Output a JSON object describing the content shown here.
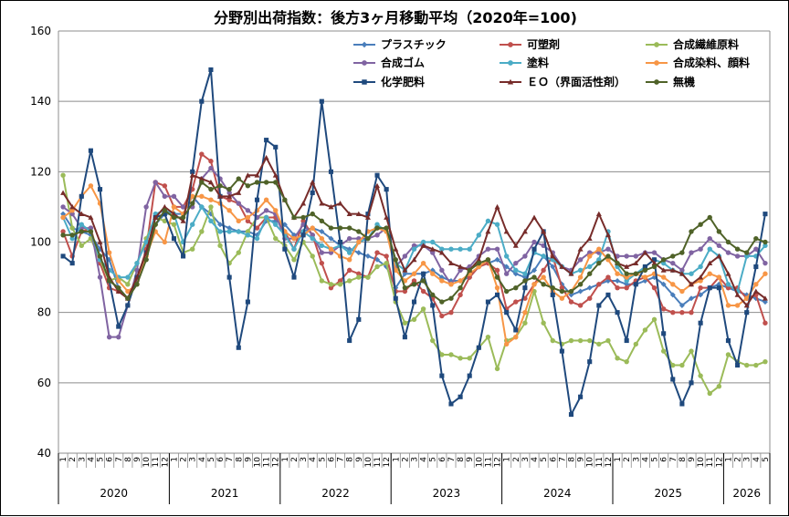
{
  "chart_data": {
    "type": "line",
    "title": "分野別出荷指数：後方3ヶ月移動平均（2020年=100)",
    "ylim": [
      40,
      160
    ],
    "yticks": [
      40,
      60,
      80,
      100,
      120,
      140,
      160
    ],
    "grid": "horizontal",
    "legend_position": "top-right",
    "years": [
      {
        "label": "2020",
        "months": 12
      },
      {
        "label": "2021",
        "months": 12
      },
      {
        "label": "2022",
        "months": 12
      },
      {
        "label": "2023",
        "months": 12
      },
      {
        "label": "2024",
        "months": 12
      },
      {
        "label": "2025",
        "months": 12
      },
      {
        "label": "2026",
        "months": 5
      }
    ],
    "month_labels": [
      "1",
      "2",
      "3",
      "4",
      "5",
      "6",
      "7",
      "8",
      "9",
      "10",
      "11",
      "12",
      "1",
      "2",
      "3",
      "4",
      "5",
      "6",
      "7",
      "8",
      "9",
      "10",
      "11",
      "12",
      "1",
      "2",
      "3",
      "4",
      "5",
      "6",
      "7",
      "8",
      "9",
      "10",
      "11",
      "12",
      "1",
      "2",
      "3",
      "4",
      "5",
      "6",
      "7",
      "8",
      "9",
      "10",
      "11",
      "12",
      "1",
      "2",
      "3",
      "4",
      "5",
      "6",
      "7",
      "8",
      "9",
      "10",
      "11",
      "12",
      "1",
      "2",
      "3",
      "4",
      "5",
      "6",
      "7",
      "8",
      "9",
      "10",
      "11",
      "12",
      "1",
      "2",
      "3",
      "4",
      "5"
    ],
    "series": [
      {
        "name": "プラスチック",
        "color": "#4a7ebb",
        "marker": "diamond",
        "values": [
          108,
          104,
          103,
          102,
          98,
          95,
          87,
          84,
          89,
          95,
          105,
          108,
          108,
          108,
          113,
          110,
          108,
          105,
          104,
          103,
          103,
          102,
          106,
          106,
          105,
          102,
          103,
          104,
          103,
          101,
          99,
          98,
          97,
          96,
          95,
          93,
          87,
          91,
          91,
          91,
          92,
          90,
          89,
          89,
          90,
          93,
          94,
          95,
          93,
          91,
          90,
          92,
          96,
          93,
          88,
          85,
          86,
          87,
          88,
          89,
          89,
          88,
          88,
          89,
          90,
          88,
          85,
          82,
          84,
          85,
          87,
          88,
          87,
          86,
          85,
          84,
          83
        ]
      },
      {
        "name": "可塑剤",
        "color": "#c0504d",
        "marker": "circle",
        "values": [
          103,
          96,
          103,
          104,
          94,
          87,
          86,
          84,
          89,
          98,
          117,
          116,
          110,
          110,
          115,
          125,
          123,
          113,
          112,
          111,
          106,
          104,
          107,
          107,
          103,
          98,
          106,
          102,
          94,
          87,
          89,
          92,
          91,
          90,
          97,
          96,
          86,
          86,
          89,
          86,
          84,
          79,
          80,
          85,
          90,
          93,
          94,
          92,
          81,
          83,
          84,
          88,
          92,
          96,
          87,
          83,
          82,
          84,
          88,
          90,
          87,
          87,
          89,
          90,
          87,
          81,
          80,
          80,
          80,
          87,
          87,
          90,
          87,
          87,
          84,
          85,
          77
        ]
      },
      {
        "name": "合成繊維原料",
        "color": "#9bbb59",
        "marker": "circle",
        "values": [
          119,
          104,
          99,
          101,
          95,
          89,
          90,
          88,
          94,
          101,
          107,
          106,
          105,
          97,
          98,
          103,
          110,
          99,
          94,
          97,
          103,
          107,
          107,
          101,
          99,
          95,
          100,
          96,
          89,
          88,
          88,
          89,
          90,
          90,
          93,
          94,
          83,
          77,
          78,
          81,
          72,
          68,
          68,
          67,
          67,
          70,
          73,
          64,
          72,
          73,
          77,
          86,
          77,
          72,
          71,
          72,
          72,
          72,
          71,
          72,
          67,
          66,
          71,
          75,
          78,
          69,
          65,
          65,
          69,
          62,
          57,
          59,
          68,
          66,
          65,
          65,
          66
        ]
      },
      {
        "name": "合成ゴム",
        "color": "#8064a2",
        "marker": "circle",
        "values": [
          110,
          108,
          104,
          104,
          90,
          73,
          73,
          82,
          92,
          110,
          117,
          113,
          113,
          110,
          110,
          118,
          121,
          118,
          114,
          111,
          109,
          107,
          109,
          108,
          101,
          101,
          105,
          102,
          97,
          97,
          99,
          101,
          101,
          101,
          102,
          104,
          93,
          96,
          99,
          99,
          97,
          92,
          88,
          92,
          93,
          96,
          98,
          98,
          91,
          94,
          96,
          100,
          99,
          97,
          93,
          92,
          95,
          97,
          97,
          98,
          96,
          96,
          96,
          97,
          97,
          95,
          94,
          92,
          97,
          98,
          101,
          99,
          97,
          96,
          96,
          98,
          94
        ]
      },
      {
        "name": "塗料",
        "color": "#4bacc6",
        "marker": "circle",
        "values": [
          107,
          101,
          105,
          103,
          95,
          92,
          90,
          90,
          94,
          100,
          108,
          109,
          108,
          100,
          105,
          110,
          106,
          103,
          103,
          103,
          102,
          101,
          107,
          105,
          102,
          98,
          103,
          101,
          99,
          98,
          99,
          97,
          100,
          101,
          105,
          103,
          94,
          92,
          98,
          100,
          100,
          98,
          98,
          98,
          98,
          102,
          106,
          105,
          96,
          92,
          91,
          97,
          96,
          95,
          93,
          91,
          92,
          93,
          95,
          103,
          93,
          89,
          91,
          93,
          95,
          94,
          92,
          91,
          91,
          93,
          98,
          96,
          88,
          86,
          96,
          96,
          99
        ]
      },
      {
        "name": "合成染料、顔料",
        "color": "#f79646",
        "marker": "circle",
        "values": [
          107,
          109,
          113,
          116,
          111,
          97,
          89,
          86,
          88,
          96,
          103,
          100,
          110,
          108,
          113,
          113,
          112,
          111,
          109,
          106,
          107,
          109,
          112,
          109,
          103,
          101,
          102,
          104,
          101,
          98,
          96,
          95,
          100,
          103,
          104,
          103,
          92,
          89,
          91,
          94,
          91,
          89,
          88,
          89,
          91,
          93,
          95,
          87,
          71,
          73,
          80,
          88,
          90,
          86,
          84,
          86,
          90,
          96,
          98,
          95,
          91,
          90,
          91,
          90,
          91,
          90,
          88,
          86,
          88,
          89,
          91,
          90,
          82,
          82,
          84,
          88,
          91
        ]
      },
      {
        "name": "化学肥料",
        "color": "#1f497d",
        "marker": "square",
        "values": [
          96,
          94,
          113,
          126,
          115,
          89,
          76,
          82,
          90,
          97,
          107,
          108,
          101,
          96,
          120,
          140,
          149,
          113,
          90,
          70,
          83,
          112,
          129,
          127,
          98,
          90,
          102,
          114,
          140,
          120,
          100,
          72,
          78,
          108,
          119,
          115,
          84,
          73,
          83,
          91,
          82,
          62,
          54,
          56,
          62,
          70,
          83,
          85,
          80,
          75,
          87,
          98,
          103,
          85,
          69,
          51,
          56,
          66,
          82,
          85,
          80,
          72,
          88,
          93,
          95,
          74,
          61,
          54,
          60,
          77,
          87,
          87,
          72,
          65,
          80,
          93,
          108
        ]
      },
      {
        "name": "ＥＯ（界面活性剤）",
        "color": "#772c2a",
        "marker": "triangle",
        "values": [
          114,
          110,
          108,
          107,
          100,
          90,
          86,
          84,
          90,
          97,
          107,
          110,
          108,
          106,
          119,
          118,
          117,
          113,
          113,
          114,
          119,
          119,
          124,
          119,
          112,
          107,
          111,
          117,
          111,
          110,
          111,
          108,
          108,
          107,
          116,
          107,
          98,
          92,
          95,
          99,
          98,
          97,
          94,
          93,
          92,
          95,
          103,
          110,
          103,
          99,
          103,
          107,
          103,
          96,
          93,
          91,
          98,
          101,
          108,
          102,
          94,
          93,
          94,
          97,
          94,
          92,
          92,
          91,
          88,
          90,
          94,
          96,
          91,
          85,
          82,
          86,
          84
        ]
      },
      {
        "name": "無機",
        "color": "#4f6228",
        "marker": "circle",
        "values": [
          102,
          102,
          103,
          103,
          96,
          89,
          87,
          84,
          88,
          95,
          105,
          109,
          107,
          107,
          111,
          117,
          115,
          116,
          115,
          118,
          116,
          117,
          117,
          117,
          112,
          107,
          107,
          108,
          106,
          104,
          104,
          104,
          103,
          101,
          104,
          104,
          95,
          87,
          88,
          89,
          85,
          83,
          84,
          87,
          92,
          94,
          95,
          90,
          86,
          87,
          89,
          90,
          88,
          87,
          86,
          86,
          88,
          91,
          94,
          96,
          94,
          91,
          91,
          92,
          93,
          95,
          96,
          97,
          103,
          105,
          107,
          103,
          100,
          98,
          97,
          101,
          100
        ]
      }
    ]
  }
}
